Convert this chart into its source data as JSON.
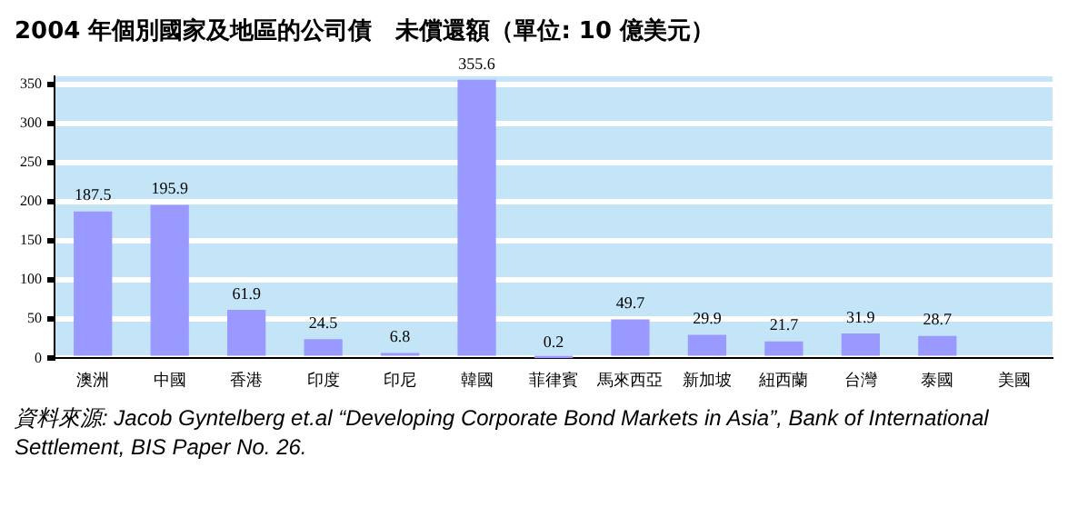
{
  "chart_data": {
    "type": "bar",
    "title": "2004 年個別國家及地區的公司債　未償還額（單位:  10 億美元）",
    "categories": [
      "澳洲",
      "中國",
      "香港",
      "印度",
      "印尼",
      "韓國",
      "菲律賓",
      "馬來西亞",
      "新加坡",
      "紐西蘭",
      "台灣",
      "泰國",
      "美國"
    ],
    "values": [
      187.5,
      195.9,
      61.9,
      24.5,
      6.8,
      355.6,
      0.2,
      49.7,
      29.9,
      21.7,
      31.9,
      28.7,
      null
    ],
    "color": "#9999ff",
    "ylim": [
      0,
      360
    ],
    "yticks": [
      0,
      50,
      100,
      150,
      200,
      250,
      300,
      350
    ],
    "grid": "y",
    "data_labels": true,
    "annotations": [
      "資料來源:  Jacob Gyntelberg et.al “Developing Corporate Bond Markets in Asia”, Bank of International Settlement, BIS Paper No. 26."
    ]
  }
}
